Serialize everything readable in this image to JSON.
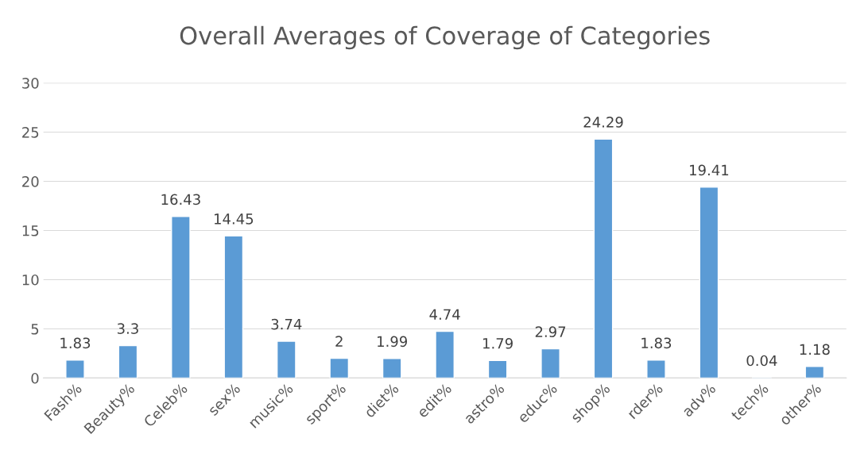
{
  "chart_data": {
    "type": "bar",
    "title": "Overall Averages of Coverage of Categories",
    "categories": [
      "Fash%",
      "Beauty%",
      "Celeb%",
      "sex%",
      "music%",
      "sport%",
      "diet%",
      "edit%",
      "astro%",
      "educ%",
      "shop%",
      "rder%",
      "adv%",
      "tech%",
      "other%"
    ],
    "values": [
      1.83,
      3.3,
      16.43,
      14.45,
      3.74,
      2,
      1.99,
      4.74,
      1.79,
      2.97,
      24.29,
      1.83,
      19.41,
      0.04,
      1.18
    ],
    "color": "#5b9bd5",
    "ylim": [
      0,
      30
    ],
    "yticks": [
      0,
      5,
      10,
      15,
      20,
      25,
      30
    ],
    "grid": "y",
    "data_labels": true
  }
}
